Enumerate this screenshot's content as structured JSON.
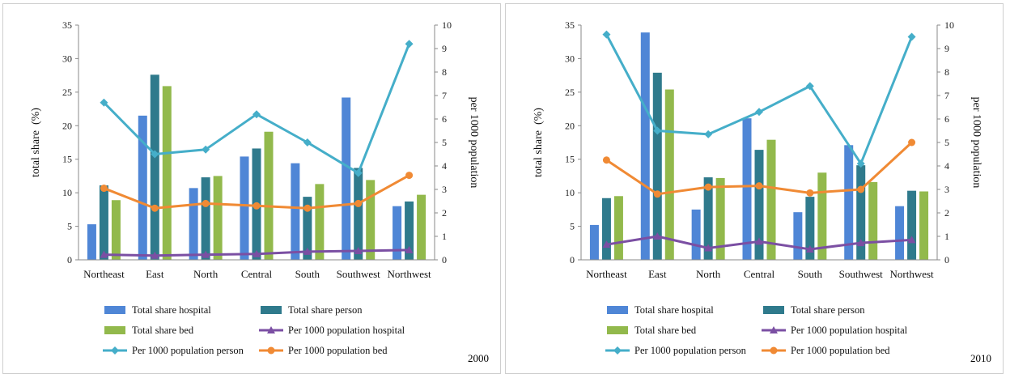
{
  "chart_data": [
    {
      "type": "bar",
      "year_label": "2000",
      "categories": [
        "Northeast",
        "East",
        "North",
        "Central",
        "South",
        "Southwest",
        "Northwest"
      ],
      "ylabel": "total share  (%)",
      "y2label": "per 1000 population",
      "ylim": [
        0,
        35
      ],
      "y2lim": [
        0,
        10
      ],
      "y_ticks": [
        "0",
        "5",
        "10",
        "15",
        "20",
        "25",
        "30",
        "35"
      ],
      "y2_ticks": [
        "0",
        "1",
        "2",
        "3",
        "4",
        "5",
        "6",
        "7",
        "8",
        "9",
        "10"
      ],
      "bar_series": [
        {
          "name": "Total share hospital",
          "color": "#4f86d6",
          "values": [
            5.3,
            21.5,
            10.7,
            15.4,
            14.4,
            24.2,
            8.0
          ]
        },
        {
          "name": "Total share person",
          "color": "#2f7a8c",
          "values": [
            11.1,
            27.6,
            12.3,
            16.6,
            9.4,
            13.7,
            8.7
          ]
        },
        {
          "name": "Total share bed",
          "color": "#92b94c",
          "values": [
            8.9,
            25.9,
            12.5,
            19.1,
            11.3,
            11.9,
            9.7
          ]
        }
      ],
      "line_series": [
        {
          "name": "Per 1000 population hospital",
          "color": "#7b4fa3",
          "marker": "triangle",
          "values": [
            0.22,
            0.18,
            0.22,
            0.25,
            0.35,
            0.38,
            0.42
          ]
        },
        {
          "name": "Per 1000 population person",
          "color": "#45aec9",
          "marker": "diamond",
          "values": [
            6.7,
            4.5,
            4.7,
            6.2,
            5.0,
            3.7,
            9.2
          ]
        },
        {
          "name": "Per 1000 population bed",
          "color": "#f08a34",
          "marker": "circle",
          "values": [
            3.05,
            2.2,
            2.4,
            2.3,
            2.2,
            2.4,
            3.6
          ]
        }
      ]
    },
    {
      "type": "bar",
      "year_label": "2010",
      "categories": [
        "Northeast",
        "East",
        "North",
        "Central",
        "South",
        "Southwest",
        "Northwest"
      ],
      "ylabel": "total share  (%)",
      "y2label": "per 1000 population",
      "ylim": [
        0,
        35
      ],
      "y2lim": [
        0,
        10
      ],
      "y_ticks": [
        "0",
        "5",
        "10",
        "15",
        "20",
        "25",
        "30",
        "35"
      ],
      "y2_ticks": [
        "0",
        "1",
        "2",
        "3",
        "4",
        "5",
        "6",
        "7",
        "8",
        "9",
        "10"
      ],
      "bar_series": [
        {
          "name": "Total share hospital",
          "color": "#4f86d6",
          "values": [
            5.2,
            33.9,
            7.5,
            21.1,
            7.1,
            17.1,
            8.0
          ]
        },
        {
          "name": "Total share person",
          "color": "#2f7a8c",
          "values": [
            9.2,
            27.9,
            12.3,
            16.4,
            9.4,
            14.1,
            10.3
          ]
        },
        {
          "name": "Total share bed",
          "color": "#92b94c",
          "values": [
            9.5,
            25.4,
            12.2,
            17.9,
            13.0,
            11.6,
            10.2
          ]
        }
      ],
      "line_series": [
        {
          "name": "Per 1000 population hospital",
          "color": "#7b4fa3",
          "marker": "triangle",
          "values": [
            0.65,
            1.0,
            0.5,
            0.78,
            0.45,
            0.72,
            0.85
          ]
        },
        {
          "name": "Per 1000 population person",
          "color": "#45aec9",
          "marker": "diamond",
          "values": [
            9.6,
            5.5,
            5.35,
            6.3,
            7.4,
            4.1,
            9.5
          ]
        },
        {
          "name": "Per 1000 population bed",
          "color": "#f08a34",
          "marker": "circle",
          "values": [
            4.25,
            2.8,
            3.1,
            3.15,
            2.85,
            3.0,
            5.0
          ]
        }
      ]
    }
  ]
}
